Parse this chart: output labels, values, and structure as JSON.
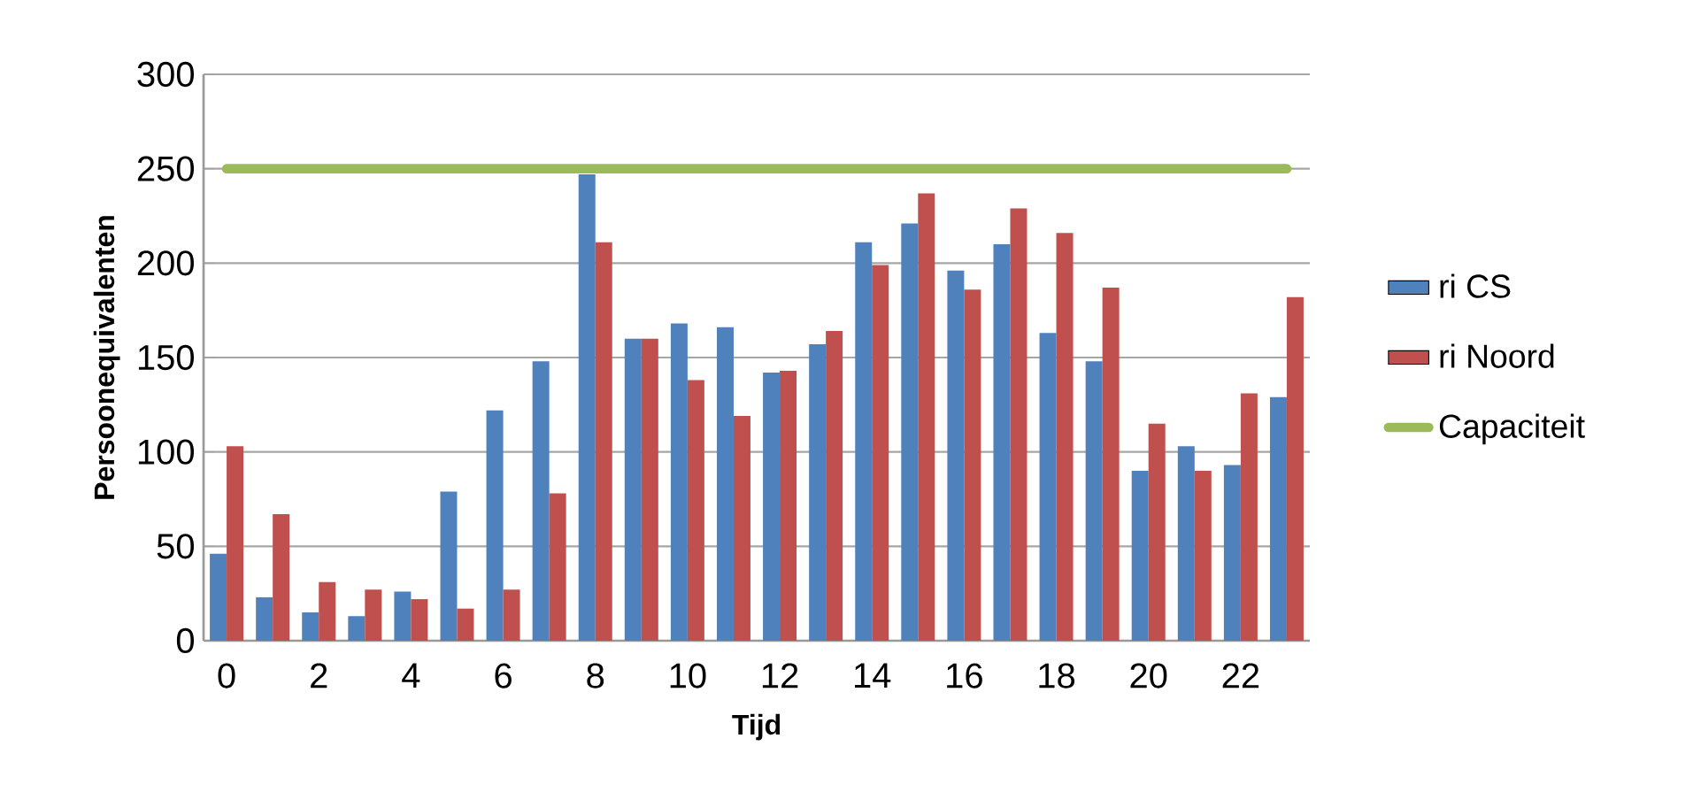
{
  "chart_data": {
    "type": "bar",
    "xlabel": "Tijd",
    "ylabel": "Persoonequivalenten",
    "categories": [
      "0",
      null,
      "2",
      null,
      "4",
      null,
      "6",
      null,
      "8",
      null,
      "10",
      null,
      "12",
      null,
      "14",
      null,
      "16",
      null,
      "18",
      null,
      "20",
      null,
      "22",
      null
    ],
    "series": [
      {
        "name": "ri CS",
        "color": "#4f81bd",
        "values": [
          46,
          23,
          15,
          13,
          26,
          79,
          122,
          148,
          247,
          160,
          168,
          166,
          142,
          157,
          211,
          221,
          196,
          210,
          163,
          148,
          90,
          103,
          93,
          129
        ]
      },
      {
        "name": "ri Noord",
        "color": "#c0504d",
        "values": [
          103,
          67,
          31,
          27,
          22,
          17,
          27,
          78,
          211,
          160,
          138,
          119,
          143,
          164,
          199,
          237,
          186,
          229,
          216,
          187,
          115,
          90,
          131,
          182
        ]
      },
      {
        "name": "Capaciteit",
        "type": "line",
        "color": "#9bbb59",
        "values": [
          250,
          250,
          250,
          250,
          250,
          250,
          250,
          250,
          250,
          250,
          250,
          250,
          250,
          250,
          250,
          250,
          250,
          250,
          250,
          250,
          250,
          250,
          250,
          250
        ]
      }
    ],
    "ylim": [
      0,
      300
    ],
    "yticks": [
      0,
      50,
      100,
      150,
      200,
      250,
      300
    ],
    "grid": "y",
    "legend": "right"
  }
}
